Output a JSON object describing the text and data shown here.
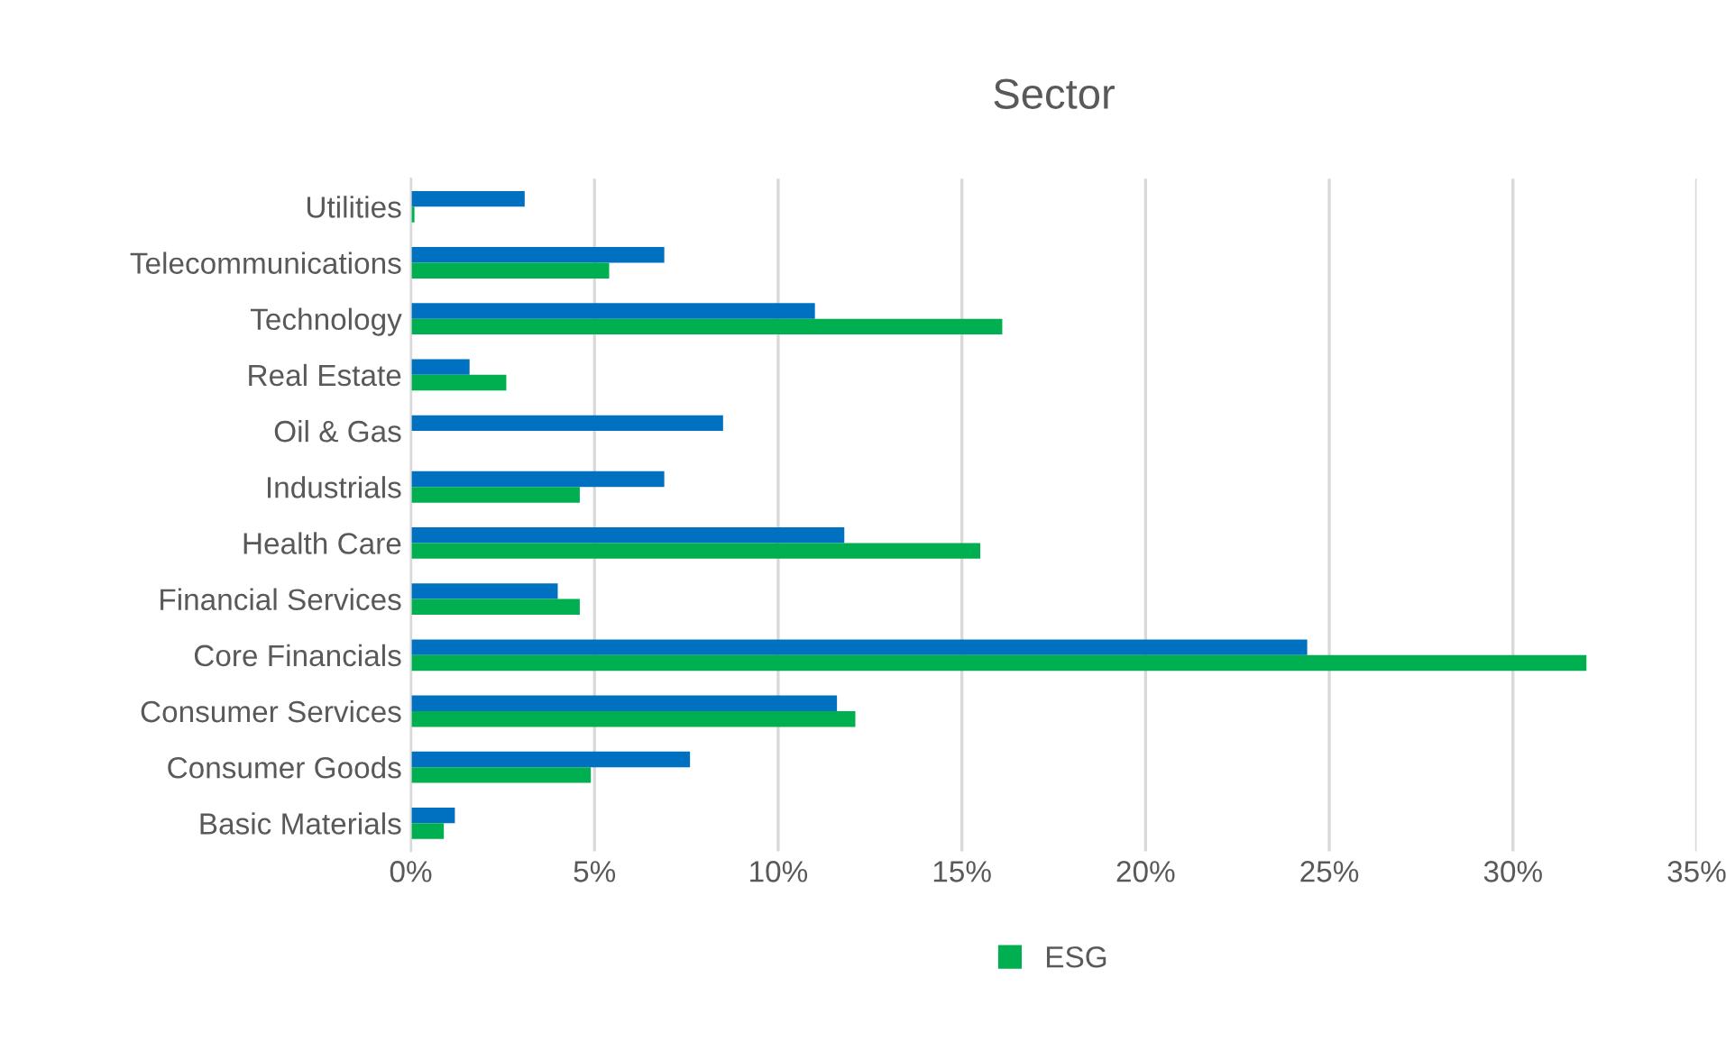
{
  "chart_data": {
    "type": "bar",
    "orientation": "horizontal",
    "title": "Sector",
    "categories": [
      "Utilities",
      "Telecommunications",
      "Technology",
      "Real Estate",
      "Oil & Gas",
      "Industrials",
      "Health Care",
      "Financial Services",
      "Core Financials",
      "Consumer Services",
      "Consumer Goods",
      "Basic Materials"
    ],
    "series": [
      {
        "color": "#0070c0",
        "values": [
          3.1,
          6.9,
          11.0,
          1.6,
          8.5,
          6.9,
          11.8,
          4.0,
          24.4,
          11.6,
          7.6,
          1.2
        ]
      },
      {
        "name": "ESG",
        "color": "#00b050",
        "values": [
          0.1,
          5.4,
          16.1,
          2.6,
          0,
          4.6,
          15.5,
          4.6,
          32.0,
          12.1,
          4.9,
          0.9
        ]
      }
    ],
    "xlim": [
      0,
      35
    ],
    "xticks": [
      {
        "value": 0,
        "label": "0%"
      },
      {
        "value": 5,
        "label": "5%"
      },
      {
        "value": 10,
        "label": "10%"
      },
      {
        "value": 15,
        "label": "15%"
      },
      {
        "value": 20,
        "label": "20%"
      },
      {
        "value": 25,
        "label": "25%"
      },
      {
        "value": 30,
        "label": "30%"
      },
      {
        "value": 35,
        "label": "35%"
      }
    ],
    "grid": "x",
    "legend": "bottom"
  }
}
